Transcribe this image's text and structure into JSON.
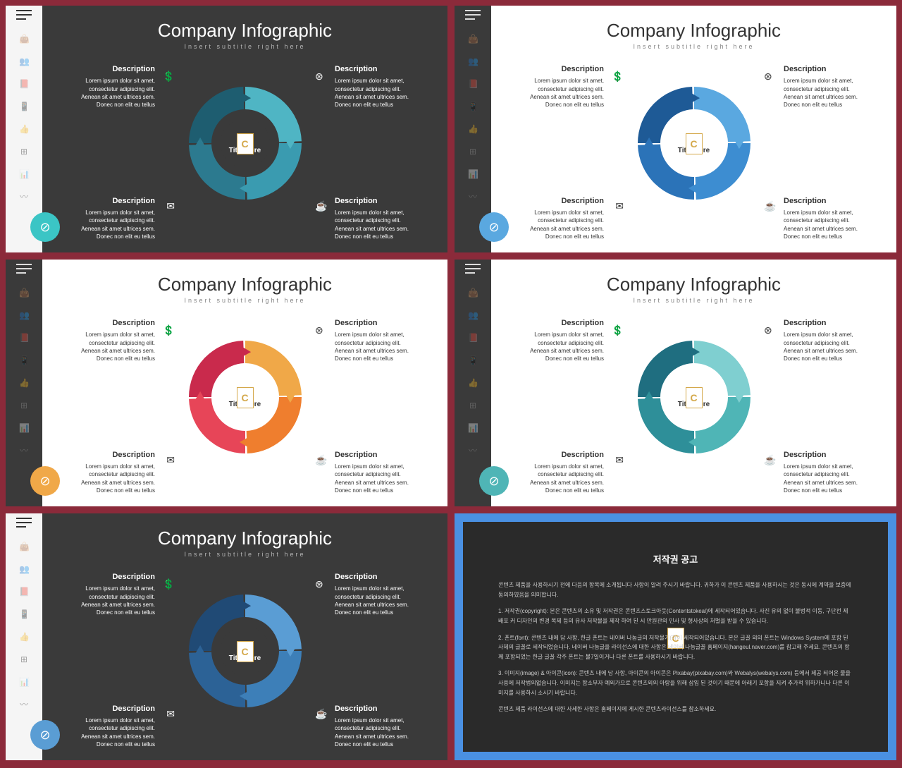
{
  "slides": [
    {
      "bg": "dark",
      "sidebar": "light",
      "title": "Company Infographic",
      "subtitle": "Insert subtitle right here",
      "center_label": "Title Here",
      "segment_colors": [
        "#4fb5c4",
        "#3a9bb0",
        "#2c7a8f",
        "#1e5d70"
      ],
      "badge_color": "#3bc5c5",
      "descriptions": {
        "tl": {
          "h": "Description",
          "t": "Lorem ipsum dolor sit amet, consectetur adipiscing elit. Aenean sit amet ultrices sem. Donec non elit eu tellus"
        },
        "tr": {
          "h": "Description",
          "t": "Lorem ipsum dolor sit amet, consectetur adipiscing elit. Aenean sit amet ultrices sem. Donec non elit eu tellus"
        },
        "bl": {
          "h": "Description",
          "t": "Lorem ipsum dolor sit amet, consectetur adipiscing elit. Aenean sit amet ultrices sem. Donec non elit eu tellus"
        },
        "br": {
          "h": "Description",
          "t": "Lorem ipsum dolor sit amet, consectetur adipiscing elit. Aenean sit amet ultrices sem. Donec non elit eu tellus"
        }
      }
    },
    {
      "bg": "light",
      "sidebar": "dark",
      "title": "Company Infographic",
      "subtitle": "Insert subtitle right here",
      "center_label": "Title Here",
      "segment_colors": [
        "#5aa8e0",
        "#3d8dd1",
        "#2b73b8",
        "#1e5a96"
      ],
      "badge_color": "#5aa8e0",
      "descriptions": {
        "tl": {
          "h": "Description",
          "t": "Lorem ipsum dolor sit amet, consectetur adipiscing elit. Aenean sit amet ultrices sem. Donec non elit eu tellus"
        },
        "tr": {
          "h": "Description",
          "t": "Lorem ipsum dolor sit amet, consectetur adipiscing elit. Aenean sit amet ultrices sem. Donec non elit eu tellus"
        },
        "bl": {
          "h": "Description",
          "t": "Lorem ipsum dolor sit amet, consectetur adipiscing elit. Aenean sit amet ultrices sem. Donec non elit eu tellus"
        },
        "br": {
          "h": "Description",
          "t": "Lorem ipsum dolor sit amet, consectetur adipiscing elit. Aenean sit amet ultrices sem. Donec non elit eu tellus"
        }
      }
    },
    {
      "bg": "light",
      "sidebar": "dark",
      "title": "Company Infographic",
      "subtitle": "Insert subtitle right here",
      "center_label": "Title Here",
      "segment_colors": [
        "#f0a848",
        "#ef7e2e",
        "#e74558",
        "#c92a4c"
      ],
      "badge_color": "#f0a848",
      "descriptions": {
        "tl": {
          "h": "Description",
          "t": "Lorem ipsum dolor sit amet, consectetur adipiscing elit. Aenean sit amet ultrices sem. Donec non elit eu tellus"
        },
        "tr": {
          "h": "Description",
          "t": "Lorem ipsum dolor sit amet, consectetur adipiscing elit. Aenean sit amet ultrices sem. Donec non elit eu tellus"
        },
        "bl": {
          "h": "Description",
          "t": "Lorem ipsum dolor sit amet, consectetur adipiscing elit. Aenean sit amet ultrices sem. Donec non elit eu tellus"
        },
        "br": {
          "h": "Description",
          "t": "Lorem ipsum dolor sit amet, consectetur adipiscing elit. Aenean sit amet ultrices sem. Donec non elit eu tellus"
        }
      }
    },
    {
      "bg": "light",
      "sidebar": "dark",
      "title": "Company Infographic",
      "subtitle": "Insert subtitle right here",
      "center_label": "Title Here",
      "segment_colors": [
        "#7fcfd0",
        "#4fb5b6",
        "#2e8f99",
        "#1f6e80"
      ],
      "badge_color": "#4fb5b6",
      "descriptions": {
        "tl": {
          "h": "Description",
          "t": "Lorem ipsum dolor sit amet, consectetur adipiscing elit. Aenean sit amet ultrices sem. Donec non elit eu tellus"
        },
        "tr": {
          "h": "Description",
          "t": "Lorem ipsum dolor sit amet, consectetur adipiscing elit. Aenean sit amet ultrices sem. Donec non elit eu tellus"
        },
        "bl": {
          "h": "Description",
          "t": "Lorem ipsum dolor sit amet, consectetur adipiscing elit. Aenean sit amet ultrices sem. Donec non elit eu tellus"
        },
        "br": {
          "h": "Description",
          "t": "Lorem ipsum dolor sit amet, consectetur adipiscing elit. Aenean sit amet ultrices sem. Donec non elit eu tellus"
        }
      }
    },
    {
      "bg": "dark",
      "sidebar": "light",
      "title": "Company Infographic",
      "subtitle": "Insert subtitle right here",
      "center_label": "Title Here",
      "segment_colors": [
        "#5a9dd4",
        "#3d7fb8",
        "#2c6296",
        "#204a75"
      ],
      "badge_color": "#5a9dd4",
      "descriptions": {
        "tl": {
          "h": "Description",
          "t": "Lorem ipsum dolor sit amet, consectetur adipiscing elit. Aenean sit amet ultrices sem. Donec non elit eu tellus"
        },
        "tr": {
          "h": "Description",
          "t": "Lorem ipsum dolor sit amet, consectetur adipiscing elit. Aenean sit amet ultrices sem. Donec non elit eu tellus"
        },
        "bl": {
          "h": "Description",
          "t": "Lorem ipsum dolor sit amet, consectetur adipiscing elit. Aenean sit amet ultrices sem. Donec non elit eu tellus"
        },
        "br": {
          "h": "Description",
          "t": "Lorem ipsum dolor sit amet, consectetur adipiscing elit. Aenean sit amet ultrices sem. Donec non elit eu tellus"
        }
      }
    }
  ],
  "copyright": {
    "title": "저작권 공고",
    "p1": "콘텐츠 제품을 사용하시기 전에 다음의 항목에 소개됩니다 사항이 알려 주시기 바랍니다. 귀하가 이 콘텐츠 제품을 사용하시는 것은 동시에 계약을 보증에 동의하였음을 의미합니다.",
    "p2": "1. 저작권(copyright): 본은 콘텐츠의 소유 및 저작권은 콘텐츠스토크아웃(Contentstokeal)에 세작되어있습니다. 사진 유의 없이 불법적 이동, 구단전 제 배포 커 디자인의 변경 복제 등의 유사 저작물을 제작 하여 된 시 만원관의 민사 및 형사상의 처벌을 받을 수 있습니다.",
    "p3": "2. 폰트(font): 콘텐츠 내에 담 사항, 한글 폰트는 네이버 나눔글의 저작물기(하이 세작되어있습니다. 본은 글꼴 외의 폰트는 Windows System에 포함 된 사체의 글꼴로 세작되었습니다. 네이버 나눔글을 라이선스에 대한 사항은 네이버 나눔글꼴 홈페이지(hangeul.naver.com)를 참고해 주세요. 콘텐츠의 함께 포함되었는 한글 글꼴 각주 폰트는 불7일이거나 다른 폰트를 사용하시기 바랍니다.",
    "p4": "3. 이미지(image) & 아이콘(icon): 콘텐츠 내에 담 사항, 아이콘의 아이콘은 Pixabay(pixabay.com)와 Webalys(webalys.com) 등에서 제공 되어온 물을 사용에 저작법의없습니다. 이미지는 함소부자 예외가으로 콘텐츠외의 아랑을 위해 삽입 된 것이기 때문에 아래기 포함을 지켜 추가적 위하가니나 다른 이미지를 사용하시 소시기 바랍니다.",
    "p5": "콘텐츠 제품 라이선스에 대한 사세한 사항은 홈페이지에 게시한 콘텐츠라이선스를 참소하세요."
  },
  "sidebar_icons": [
    "👜",
    "👥",
    "📕",
    "📱",
    "👍",
    "⊞",
    "📊",
    "〰"
  ]
}
